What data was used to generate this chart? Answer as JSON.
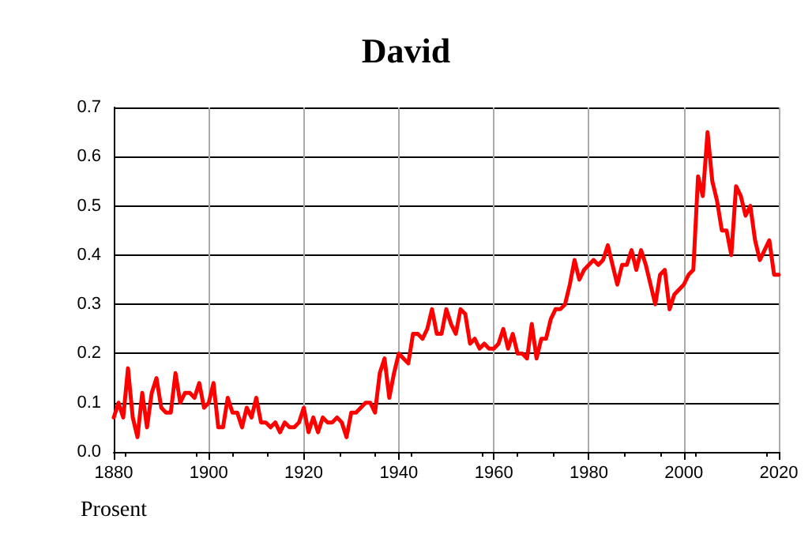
{
  "chart_data": {
    "type": "line",
    "title": "David",
    "ylabel": "Prosent",
    "x": [
      1880,
      1881,
      1882,
      1883,
      1884,
      1885,
      1886,
      1887,
      1888,
      1889,
      1890,
      1891,
      1892,
      1893,
      1894,
      1895,
      1896,
      1897,
      1898,
      1899,
      1900,
      1901,
      1902,
      1903,
      1904,
      1905,
      1906,
      1907,
      1908,
      1909,
      1910,
      1911,
      1912,
      1913,
      1914,
      1915,
      1916,
      1917,
      1918,
      1919,
      1920,
      1921,
      1922,
      1923,
      1924,
      1925,
      1926,
      1927,
      1928,
      1929,
      1930,
      1931,
      1932,
      1933,
      1934,
      1935,
      1936,
      1937,
      1938,
      1939,
      1940,
      1941,
      1942,
      1943,
      1944,
      1945,
      1946,
      1947,
      1948,
      1949,
      1950,
      1951,
      1952,
      1953,
      1954,
      1955,
      1956,
      1957,
      1958,
      1959,
      1960,
      1961,
      1962,
      1963,
      1964,
      1965,
      1966,
      1967,
      1968,
      1969,
      1970,
      1971,
      1972,
      1973,
      1974,
      1975,
      1976,
      1977,
      1978,
      1979,
      1980,
      1981,
      1982,
      1983,
      1984,
      1985,
      1986,
      1987,
      1988,
      1989,
      1990,
      1991,
      1992,
      1993,
      1994,
      1995,
      1996,
      1997,
      1998,
      1999,
      2000,
      2001,
      2002,
      2003,
      2004,
      2005,
      2006,
      2007,
      2008,
      2009,
      2010,
      2011,
      2012,
      2013,
      2014,
      2015,
      2016,
      2017,
      2018,
      2019,
      2020
    ],
    "series": [
      {
        "color": "#ff0000",
        "values": [
          0.07,
          0.1,
          0.07,
          0.17,
          0.07,
          0.03,
          0.12,
          0.05,
          0.12,
          0.15,
          0.09,
          0.08,
          0.08,
          0.16,
          0.1,
          0.12,
          0.12,
          0.11,
          0.14,
          0.09,
          0.1,
          0.14,
          0.05,
          0.05,
          0.11,
          0.08,
          0.08,
          0.05,
          0.09,
          0.07,
          0.11,
          0.06,
          0.06,
          0.05,
          0.06,
          0.04,
          0.06,
          0.05,
          0.05,
          0.06,
          0.09,
          0.04,
          0.07,
          0.04,
          0.07,
          0.06,
          0.06,
          0.07,
          0.06,
          0.03,
          0.08,
          0.08,
          0.09,
          0.1,
          0.1,
          0.08,
          0.16,
          0.19,
          0.11,
          0.16,
          0.2,
          0.19,
          0.18,
          0.24,
          0.24,
          0.23,
          0.25,
          0.29,
          0.24,
          0.24,
          0.29,
          0.26,
          0.24,
          0.29,
          0.28,
          0.22,
          0.23,
          0.21,
          0.22,
          0.21,
          0.21,
          0.22,
          0.25,
          0.21,
          0.24,
          0.2,
          0.2,
          0.19,
          0.26,
          0.19,
          0.23,
          0.23,
          0.27,
          0.29,
          0.29,
          0.3,
          0.34,
          0.39,
          0.35,
          0.37,
          0.38,
          0.39,
          0.38,
          0.39,
          0.42,
          0.38,
          0.34,
          0.38,
          0.38,
          0.41,
          0.37,
          0.41,
          0.38,
          0.34,
          0.3,
          0.36,
          0.37,
          0.29,
          0.32,
          0.33,
          0.34,
          0.36,
          0.37,
          0.56,
          0.52,
          0.65,
          0.55,
          0.51,
          0.45,
          0.45,
          0.4,
          0.54,
          0.52,
          0.48,
          0.5,
          0.43,
          0.39,
          0.41,
          0.43,
          0.36,
          0.36
        ]
      }
    ],
    "xlim": [
      1880,
      2020
    ],
    "xticks": [
      1880,
      1900,
      1920,
      1940,
      1960,
      1980,
      2000,
      2020
    ],
    "ylim": [
      0,
      0.7
    ],
    "yticks": [
      {
        "value": 0,
        "label": "0.0"
      },
      {
        "value": 0.1,
        "label": "0.1"
      },
      {
        "value": 0.2,
        "label": "0.2"
      },
      {
        "value": 0.3,
        "label": "0.3"
      },
      {
        "value": 0.4,
        "label": "0.4"
      },
      {
        "value": 0.5,
        "label": "0.5"
      },
      {
        "value": 0.6,
        "label": "0.6"
      },
      {
        "value": 0.7,
        "label": "0.7"
      }
    ],
    "grid": true,
    "marker": "none",
    "line_style": "solid"
  }
}
